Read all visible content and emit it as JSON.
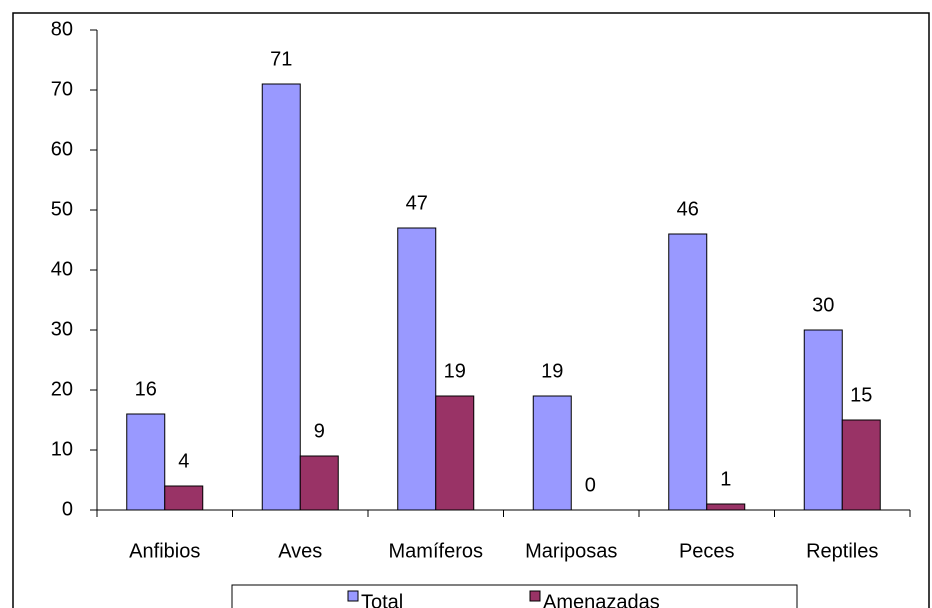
{
  "chart_data": {
    "type": "bar",
    "categories": [
      "Anfibios",
      "Aves",
      "Mamíferos",
      "Mariposas",
      "Peces",
      "Reptiles"
    ],
    "series": [
      {
        "name": "Total",
        "color": "#9999ff",
        "values": [
          16,
          71,
          47,
          19,
          46,
          30
        ]
      },
      {
        "name": "Amenazadas",
        "color": "#993366",
        "values": [
          4,
          9,
          19,
          0,
          1,
          15
        ]
      }
    ],
    "ylim": [
      0,
      80
    ],
    "yticks": [
      0,
      10,
      20,
      30,
      40,
      50,
      60,
      70,
      80
    ],
    "grid": false,
    "legend": "bottom"
  }
}
